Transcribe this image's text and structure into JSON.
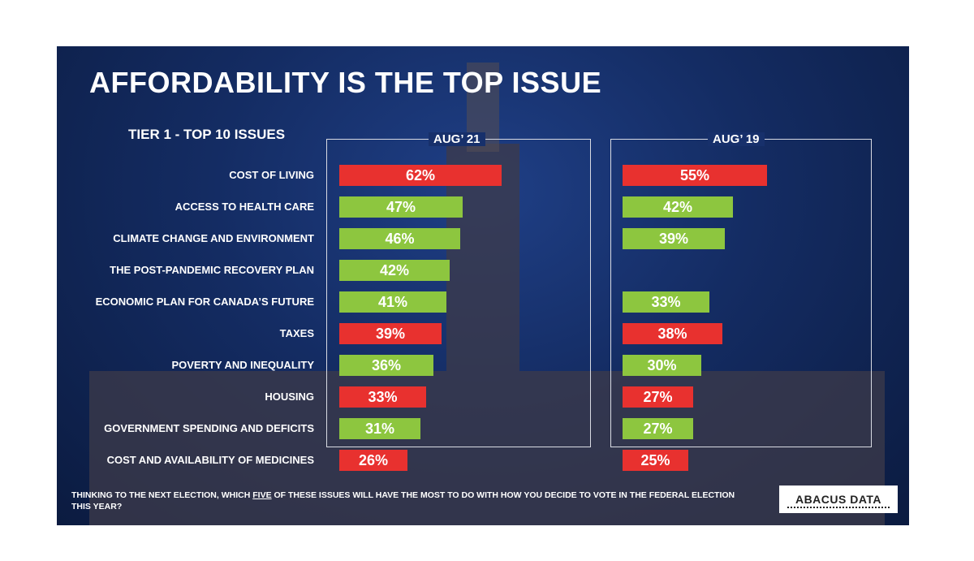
{
  "title": "AFFORDABILITY IS THE TOP ISSUE",
  "subtitle": "TIER 1 - TOP 10 ISSUES",
  "question_part1": "THINKING TO THE NEXT ELECTION, WHICH ",
  "question_emph": "FIVE",
  "question_part2": " OF THESE ISSUES WILL HAVE THE MOST TO DO WITH HOW YOU DECIDE TO VOTE IN THE FEDERAL ELECTION THIS YEAR?",
  "logo": "ABACUS DATA",
  "colors": {
    "red": "#e8312f",
    "green": "#8dc63f"
  },
  "chart_data": {
    "type": "bar",
    "orientation": "horizontal",
    "categories": [
      "COST OF LIVING",
      "ACCESS TO HEALTH CARE",
      "CLIMATE CHANGE AND ENVIRONMENT",
      "THE POST-PANDEMIC RECOVERY PLAN",
      "ECONOMIC PLAN FOR CANADA’S FUTURE",
      "TAXES",
      "POVERTY AND INEQUALITY",
      "HOUSING",
      "GOVERNMENT SPENDING AND DEFICITS",
      "COST AND AVAILABILITY OF MEDICINES"
    ],
    "affordability_flag": [
      true,
      false,
      false,
      false,
      false,
      true,
      false,
      true,
      false,
      true
    ],
    "series": [
      {
        "name": "AUG’ 21",
        "values": [
          62,
          47,
          46,
          42,
          41,
          39,
          36,
          33,
          31,
          26
        ]
      },
      {
        "name": "AUG’ 19",
        "values": [
          55,
          42,
          39,
          null,
          33,
          38,
          30,
          27,
          27,
          25
        ]
      }
    ],
    "value_suffix": "%",
    "xlim": [
      0,
      100
    ]
  }
}
